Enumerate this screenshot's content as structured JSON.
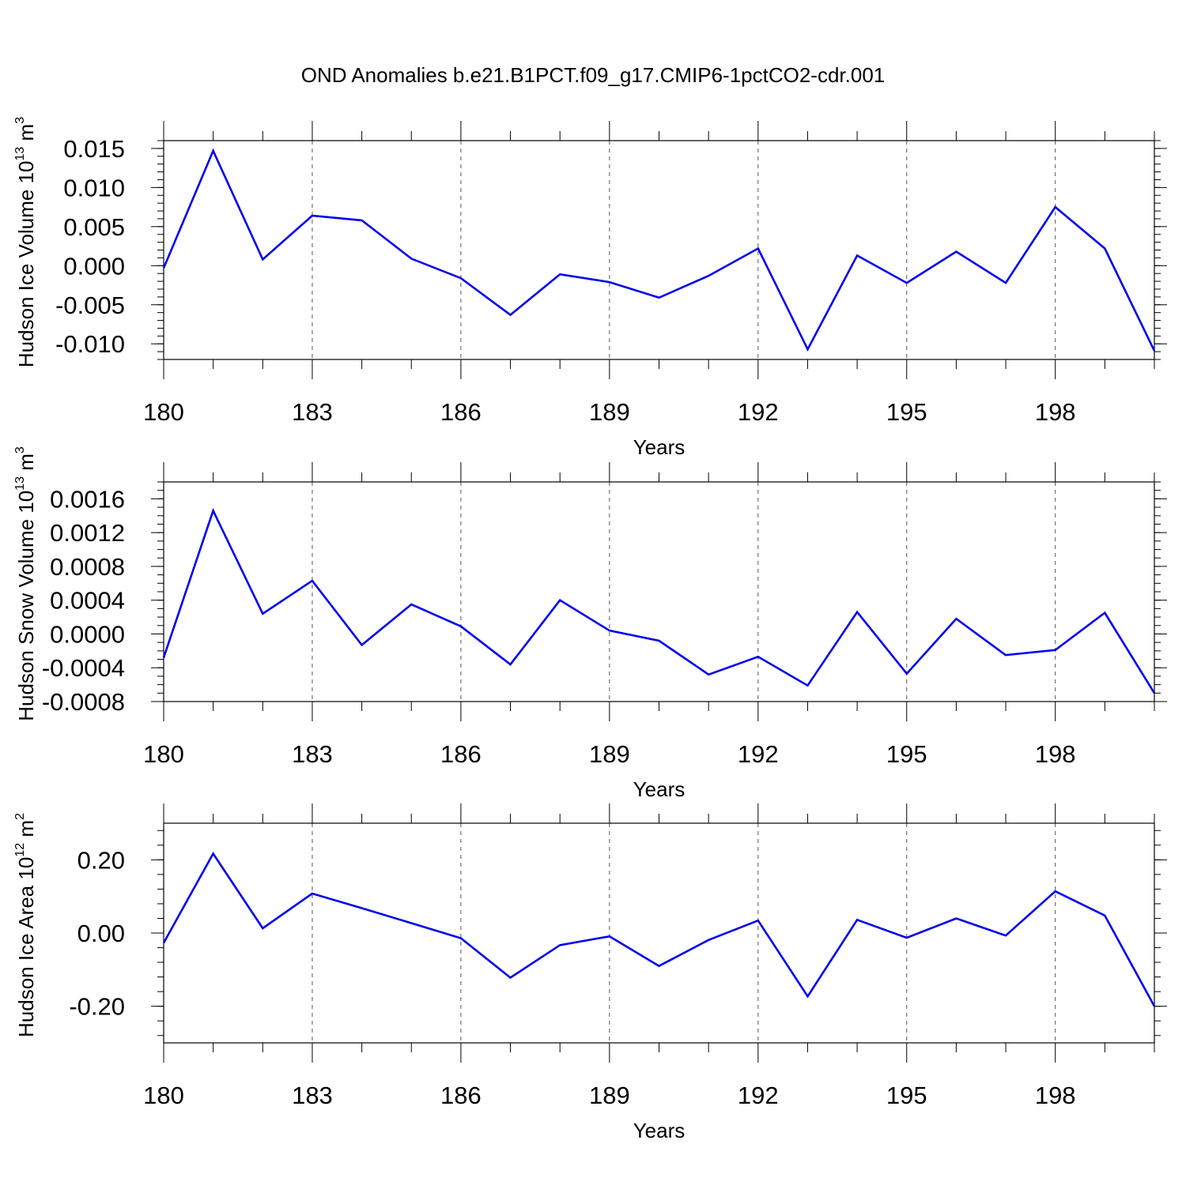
{
  "title": "OND Anomalies b.e21.B1PCT.f09_g17.CMIP6-1pctCO2-cdr.001",
  "chart_data": [
    {
      "type": "line",
      "ylabel": "Hudson Ice Volume 10",
      "ylabel_exp": "13",
      "ylabel_unit": " m",
      "ylabel_unit_exp": "3",
      "xlabel": "Years",
      "xlim": [
        180,
        200
      ],
      "ylim": [
        -0.012,
        0.016
      ],
      "x_ticks": [
        180,
        183,
        186,
        189,
        192,
        195,
        198
      ],
      "x_tick_labels": [
        "180",
        "183",
        "186",
        "189",
        "192",
        "195",
        "198"
      ],
      "y_ticks": [
        -0.01,
        -0.005,
        0.0,
        0.005,
        0.01,
        0.015
      ],
      "y_tick_labels": [
        "-0.010",
        "-0.005",
        "0.000",
        "0.005",
        "0.010",
        "0.015"
      ],
      "y_minor_step": 0.001,
      "grid_x": true,
      "line_color": "#0000ee",
      "x": [
        180,
        181,
        182,
        183,
        184,
        185,
        186,
        187,
        188,
        189,
        190,
        191,
        192,
        193,
        194,
        195,
        196,
        197,
        198,
        199,
        200
      ],
      "values": [
        -0.0003,
        0.0147,
        0.0008,
        0.0064,
        0.0058,
        0.0009,
        -0.0016,
        -0.0063,
        -0.0011,
        -0.0021,
        -0.0041,
        -0.0013,
        0.0022,
        -0.0107,
        0.0013,
        -0.0022,
        0.0018,
        -0.0022,
        0.0075,
        0.0022,
        -0.0109
      ]
    },
    {
      "type": "line",
      "ylabel": "Hudson Snow Volume 10",
      "ylabel_exp": "13",
      "ylabel_unit": " m",
      "ylabel_unit_exp": "3",
      "xlabel": "Years",
      "xlim": [
        180,
        200
      ],
      "ylim": [
        -0.0008,
        0.0018
      ],
      "x_ticks": [
        180,
        183,
        186,
        189,
        192,
        195,
        198
      ],
      "x_tick_labels": [
        "180",
        "183",
        "186",
        "189",
        "192",
        "195",
        "198"
      ],
      "y_ticks": [
        -0.0008,
        -0.0004,
        0.0,
        0.0004,
        0.0008,
        0.0012,
        0.0016
      ],
      "y_tick_labels": [
        "-0.0008",
        "-0.0004",
        "0.0000",
        "0.0004",
        "0.0008",
        "0.0012",
        "0.0016"
      ],
      "y_minor_step": 0.0001,
      "grid_x": true,
      "line_color": "#0000ee",
      "x": [
        180,
        181,
        182,
        183,
        184,
        185,
        186,
        187,
        188,
        189,
        190,
        191,
        192,
        193,
        194,
        195,
        196,
        197,
        198,
        199,
        200
      ],
      "values": [
        -0.00028,
        0.00146,
        0.00024,
        0.00063,
        -0.00013,
        0.00035,
        9e-05,
        -0.00036,
        0.0004,
        4e-05,
        -8e-05,
        -0.00048,
        -0.00027,
        -0.00061,
        0.00026,
        -0.00047,
        0.00018,
        -0.00025,
        -0.00019,
        0.00025,
        -0.0007
      ]
    },
    {
      "type": "line",
      "ylabel": "Hudson Ice Area 10",
      "ylabel_exp": "12",
      "ylabel_unit": " m",
      "ylabel_unit_exp": "2",
      "xlabel": "Years",
      "xlim": [
        180,
        200
      ],
      "ylim": [
        -0.3,
        0.3
      ],
      "x_ticks": [
        180,
        183,
        186,
        189,
        192,
        195,
        198
      ],
      "x_tick_labels": [
        "180",
        "183",
        "186",
        "189",
        "192",
        "195",
        "198"
      ],
      "y_ticks": [
        -0.2,
        0.0,
        0.2
      ],
      "y_tick_labels": [
        "-0.20",
        "0.00",
        "0.20"
      ],
      "y_minor_step": 0.04,
      "grid_x": true,
      "line_color": "#0000ee",
      "x": [
        180,
        181,
        182,
        183,
        184,
        185,
        186,
        187,
        188,
        189,
        190,
        191,
        192,
        193,
        194,
        195,
        196,
        197,
        198,
        199,
        200
      ],
      "values": [
        -0.027,
        0.217,
        0.013,
        0.108,
        0.068,
        0.027,
        -0.014,
        -0.122,
        -0.033,
        -0.009,
        -0.09,
        -0.019,
        0.034,
        -0.173,
        0.036,
        -0.013,
        0.04,
        -0.007,
        0.114,
        0.048,
        -0.2
      ]
    }
  ]
}
